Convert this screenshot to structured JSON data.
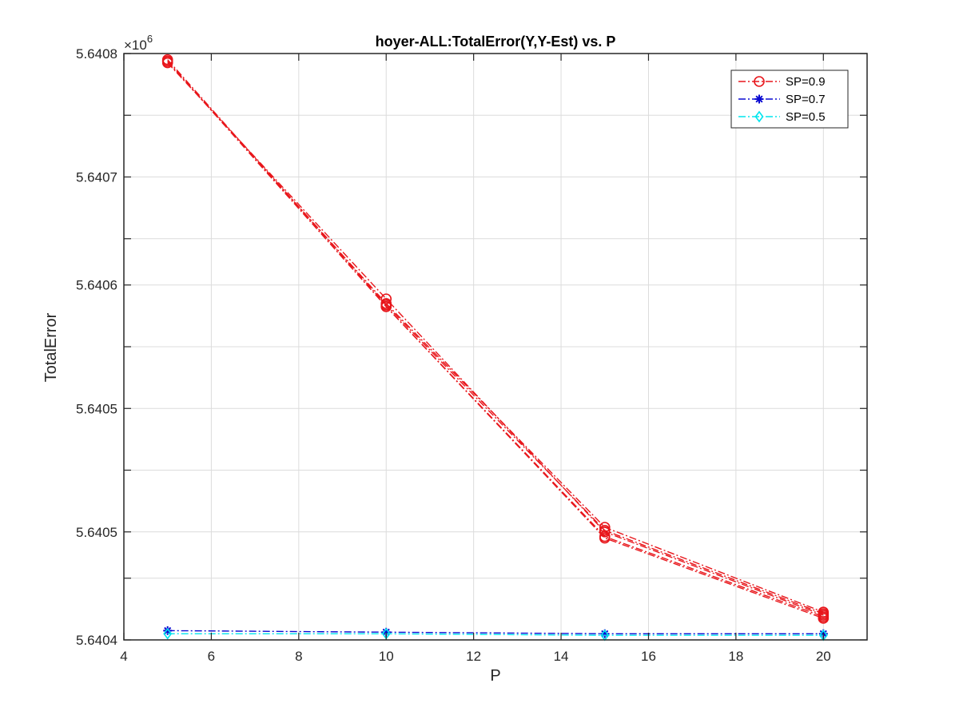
{
  "chart_data": {
    "type": "line",
    "title": "hoyer-ALL:TotalError(Y,Y-Est) vs. P",
    "xlabel": "P",
    "ylabel": "TotalError",
    "y_exponent_label": "×10",
    "y_exponent_power": "6",
    "xlim": [
      4,
      21
    ],
    "ylim": [
      5.64041,
      5.64079
    ],
    "x_ticks": [
      4,
      6,
      8,
      10,
      12,
      14,
      16,
      18,
      20
    ],
    "x_tick_labels": [
      "4",
      "6",
      "8",
      "10",
      "12",
      "14",
      "16",
      "18",
      "20"
    ],
    "y_ticks": [
      5.64041,
      5.64045,
      5.64048,
      5.64052,
      5.64056,
      5.6406,
      5.64064,
      5.64067,
      5.64071,
      5.64075,
      5.64079
    ],
    "y_tick_labels": [
      "5.6404",
      "",
      "5.6405",
      "",
      "5.6405",
      "",
      "5.6406",
      "",
      "5.6407",
      "",
      "5.6408"
    ],
    "grid": true,
    "legend_position": "top-right",
    "series": [
      {
        "name": "SP=0.9",
        "color": "#e8161b",
        "marker": "circle",
        "x": [
          5,
          10,
          15,
          20
        ],
        "y": [
          5.640784,
          5.640631,
          5.64048,
          5.640426
        ]
      },
      {
        "name": "",
        "color": "#e8161b",
        "marker": "circle",
        "x": [
          5,
          10,
          15,
          20
        ],
        "y": [
          5.640785,
          5.640628,
          5.640483,
          5.640428
        ]
      },
      {
        "name": "",
        "color": "#e8161b",
        "marker": "circle",
        "x": [
          5,
          10,
          15,
          20
        ],
        "y": [
          5.640786,
          5.640627,
          5.640481,
          5.640427
        ]
      },
      {
        "name": "",
        "color": "#e8161b",
        "marker": "circle",
        "x": [
          5,
          10,
          15,
          20
        ],
        "y": [
          5.640785,
          5.640626,
          5.640477,
          5.640425
        ]
      },
      {
        "name": "",
        "color": "#e8161b",
        "marker": "circle",
        "x": [
          5,
          10,
          15,
          20
        ],
        "y": [
          5.640785,
          5.640626,
          5.640476,
          5.640424
        ]
      },
      {
        "name": "SP=0.7",
        "color": "#0a0ad2",
        "marker": "star",
        "x": [
          5,
          10,
          15,
          20
        ],
        "y": [
          5.640416,
          5.640415,
          5.640414,
          5.640414
        ]
      },
      {
        "name": "SP=0.5",
        "color": "#00e5ee",
        "marker": "diamond",
        "x": [
          5,
          10,
          15,
          20
        ],
        "y": [
          5.640414,
          5.640414,
          5.640413,
          5.640413
        ]
      }
    ]
  }
}
